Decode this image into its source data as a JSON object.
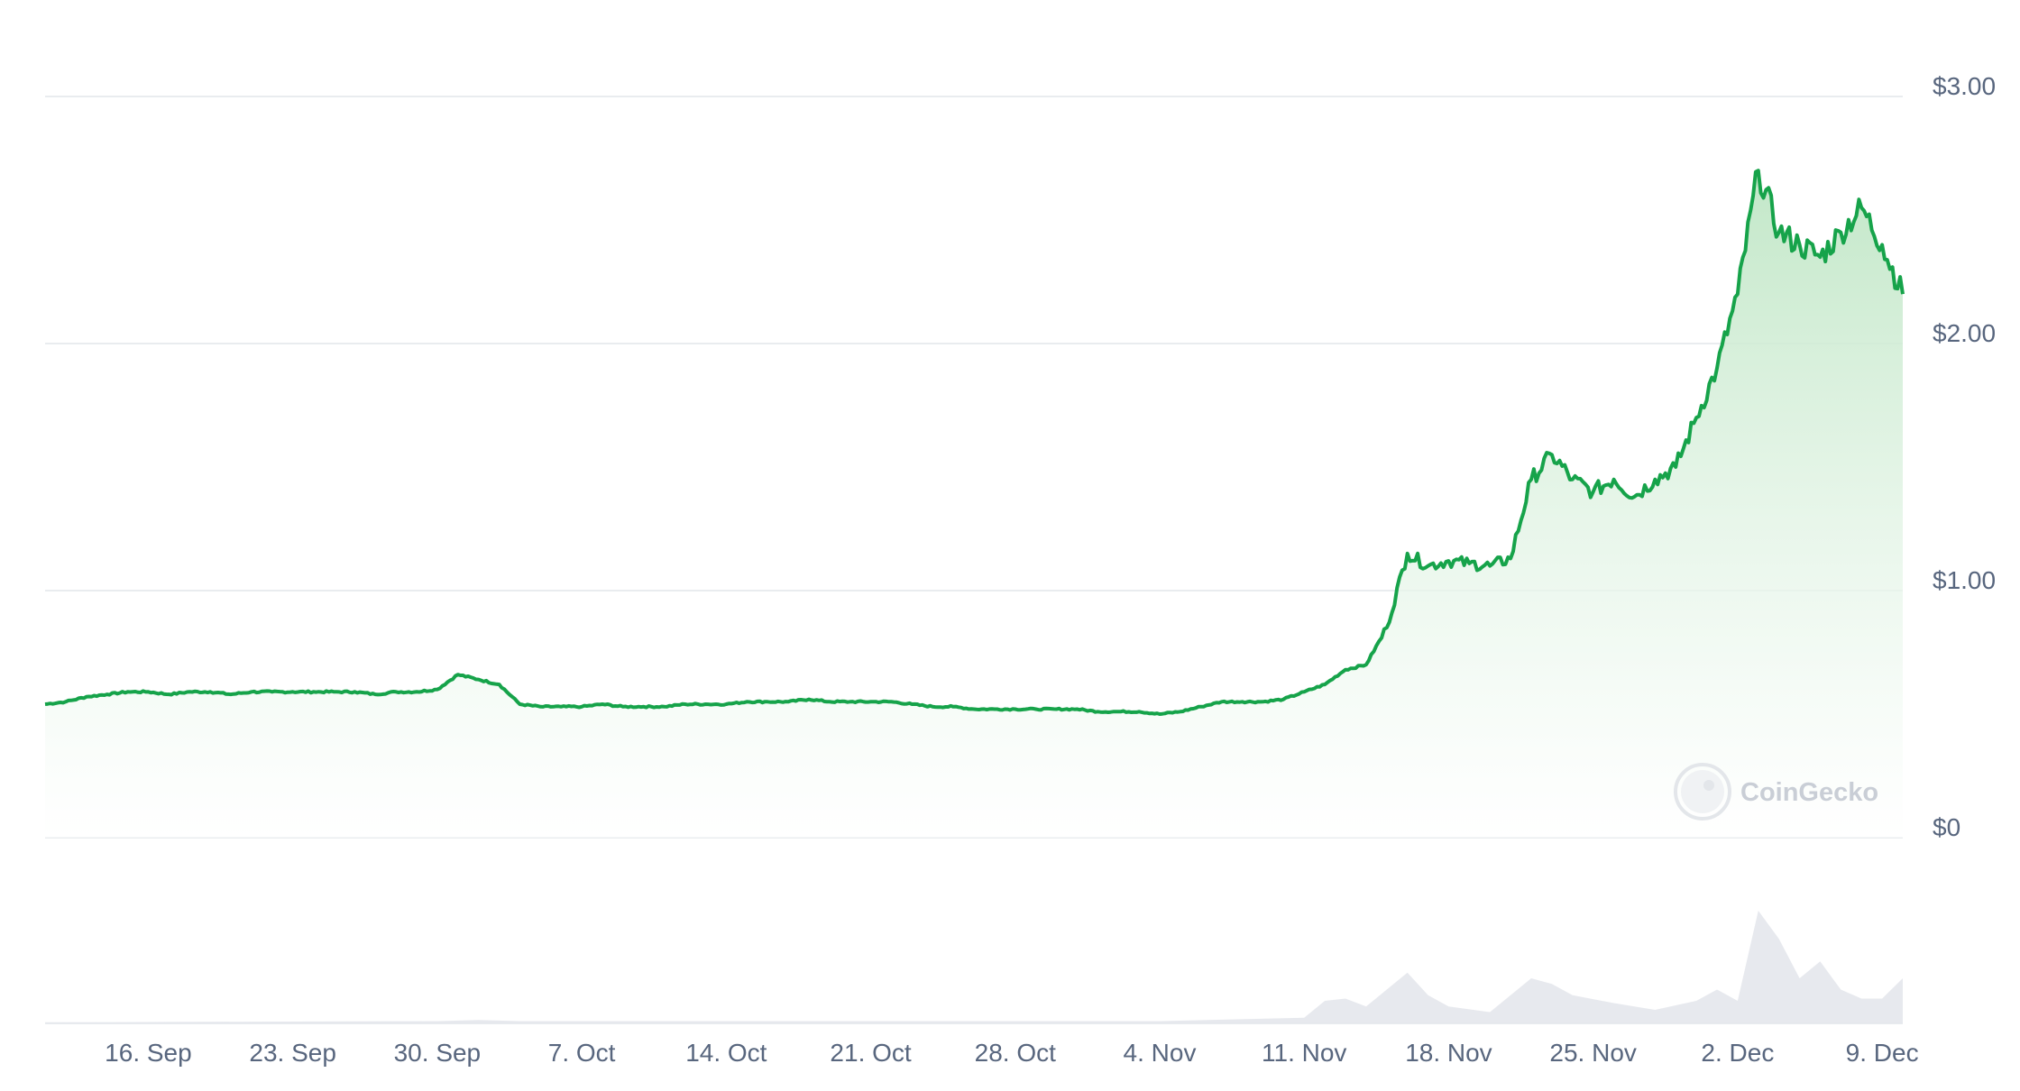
{
  "watermark": {
    "text": "CoinGecko"
  },
  "colors": {
    "line": "#16a34a",
    "area_top": "#bfe6c5",
    "grid": "#e9ecef",
    "label": "#58667e",
    "volume": "#e4e7ec",
    "watermark": "#d5d9df"
  },
  "chart_data": {
    "type": "area",
    "ylabel": "",
    "xlabel": "",
    "ylim": [
      0,
      3.0
    ],
    "y_ticks": [
      {
        "value": 0,
        "label": "$0"
      },
      {
        "value": 1.0,
        "label": "$1.00"
      },
      {
        "value": 2.0,
        "label": "$2.00"
      },
      {
        "value": 3.0,
        "label": "$3.00"
      }
    ],
    "x_ticks": [
      "16. Sep",
      "23. Sep",
      "30. Sep",
      "7. Oct",
      "14. Oct",
      "21. Oct",
      "28. Oct",
      "4. Nov",
      "11. Nov",
      "18. Nov",
      "25. Nov",
      "2. Dec",
      "9. Dec"
    ],
    "x_range": [
      "2024-09-11",
      "2024-12-10"
    ],
    "grid": true,
    "series": [
      {
        "points": [
          [
            "2024-09-11",
            0.54
          ],
          [
            "2024-09-12",
            0.55
          ],
          [
            "2024-09-13",
            0.57
          ],
          [
            "2024-09-14",
            0.58
          ],
          [
            "2024-09-15",
            0.59
          ],
          [
            "2024-09-16",
            0.59
          ],
          [
            "2024-09-17",
            0.58
          ],
          [
            "2024-09-18",
            0.59
          ],
          [
            "2024-09-19",
            0.59
          ],
          [
            "2024-09-20",
            0.58
          ],
          [
            "2024-09-21",
            0.59
          ],
          [
            "2024-09-22",
            0.59
          ],
          [
            "2024-09-23",
            0.59
          ],
          [
            "2024-09-24",
            0.59
          ],
          [
            "2024-09-25",
            0.59
          ],
          [
            "2024-09-26",
            0.59
          ],
          [
            "2024-09-27",
            0.58
          ],
          [
            "2024-09-28",
            0.59
          ],
          [
            "2024-09-29",
            0.59
          ],
          [
            "2024-09-30",
            0.6
          ],
          [
            "2024-10-01",
            0.66
          ],
          [
            "2024-10-02",
            0.64
          ],
          [
            "2024-10-03",
            0.62
          ],
          [
            "2024-10-04",
            0.54
          ],
          [
            "2024-10-05",
            0.53
          ],
          [
            "2024-10-06",
            0.53
          ],
          [
            "2024-10-07",
            0.53
          ],
          [
            "2024-10-08",
            0.54
          ],
          [
            "2024-10-09",
            0.53
          ],
          [
            "2024-10-10",
            0.53
          ],
          [
            "2024-10-11",
            0.53
          ],
          [
            "2024-10-12",
            0.54
          ],
          [
            "2024-10-13",
            0.54
          ],
          [
            "2024-10-14",
            0.54
          ],
          [
            "2024-10-15",
            0.55
          ],
          [
            "2024-10-16",
            0.55
          ],
          [
            "2024-10-17",
            0.55
          ],
          [
            "2024-10-18",
            0.56
          ],
          [
            "2024-10-19",
            0.55
          ],
          [
            "2024-10-20",
            0.55
          ],
          [
            "2024-10-21",
            0.55
          ],
          [
            "2024-10-22",
            0.55
          ],
          [
            "2024-10-23",
            0.54
          ],
          [
            "2024-10-24",
            0.53
          ],
          [
            "2024-10-25",
            0.53
          ],
          [
            "2024-10-26",
            0.52
          ],
          [
            "2024-10-27",
            0.52
          ],
          [
            "2024-10-28",
            0.52
          ],
          [
            "2024-10-29",
            0.52
          ],
          [
            "2024-10-30",
            0.52
          ],
          [
            "2024-10-31",
            0.52
          ],
          [
            "2024-11-01",
            0.51
          ],
          [
            "2024-11-02",
            0.51
          ],
          [
            "2024-11-03",
            0.51
          ],
          [
            "2024-11-04",
            0.5
          ],
          [
            "2024-11-05",
            0.51
          ],
          [
            "2024-11-06",
            0.53
          ],
          [
            "2024-11-07",
            0.55
          ],
          [
            "2024-11-08",
            0.55
          ],
          [
            "2024-11-09",
            0.55
          ],
          [
            "2024-11-10",
            0.56
          ],
          [
            "2024-11-11",
            0.59
          ],
          [
            "2024-11-12",
            0.62
          ],
          [
            "2024-11-13",
            0.68
          ],
          [
            "2024-11-14",
            0.7
          ],
          [
            "2024-11-15",
            0.85
          ],
          [
            "2024-11-16",
            1.15
          ],
          [
            "2024-11-17",
            1.1
          ],
          [
            "2024-11-18",
            1.12
          ],
          [
            "2024-11-19",
            1.11
          ],
          [
            "2024-11-20",
            1.1
          ],
          [
            "2024-11-21",
            1.13
          ],
          [
            "2024-11-22",
            1.45
          ],
          [
            "2024-11-23",
            1.55
          ],
          [
            "2024-11-24",
            1.45
          ],
          [
            "2024-11-25",
            1.4
          ],
          [
            "2024-11-26",
            1.45
          ],
          [
            "2024-11-27",
            1.38
          ],
          [
            "2024-11-28",
            1.45
          ],
          [
            "2024-11-29",
            1.5
          ],
          [
            "2024-11-30",
            1.7
          ],
          [
            "2024-12-01",
            1.9
          ],
          [
            "2024-12-02",
            2.2
          ],
          [
            "2024-12-03",
            2.7
          ],
          [
            "2024-12-04",
            2.45
          ],
          [
            "2024-12-05",
            2.4
          ],
          [
            "2024-12-06",
            2.35
          ],
          [
            "2024-12-07",
            2.45
          ],
          [
            "2024-12-08",
            2.55
          ],
          [
            "2024-12-09",
            2.4
          ],
          [
            "2024-12-10",
            2.2
          ]
        ]
      }
    ],
    "volume": {
      "points": [
        [
          "2024-09-11",
          0.01
        ],
        [
          "2024-09-30",
          0.02
        ],
        [
          "2024-10-02",
          0.03
        ],
        [
          "2024-10-04",
          0.02
        ],
        [
          "2024-11-04",
          0.02
        ],
        [
          "2024-11-11",
          0.05
        ],
        [
          "2024-11-12",
          0.2
        ],
        [
          "2024-11-13",
          0.22
        ],
        [
          "2024-11-14",
          0.15
        ],
        [
          "2024-11-15",
          0.3
        ],
        [
          "2024-11-16",
          0.45
        ],
        [
          "2024-11-17",
          0.25
        ],
        [
          "2024-11-18",
          0.15
        ],
        [
          "2024-11-20",
          0.1
        ],
        [
          "2024-11-22",
          0.4
        ],
        [
          "2024-11-23",
          0.35
        ],
        [
          "2024-11-24",
          0.25
        ],
        [
          "2024-11-26",
          0.18
        ],
        [
          "2024-11-28",
          0.12
        ],
        [
          "2024-11-30",
          0.2
        ],
        [
          "2024-12-01",
          0.3
        ],
        [
          "2024-12-02",
          0.2
        ],
        [
          "2024-12-03",
          1.0
        ],
        [
          "2024-12-04",
          0.75
        ],
        [
          "2024-12-05",
          0.4
        ],
        [
          "2024-12-06",
          0.55
        ],
        [
          "2024-12-07",
          0.3
        ],
        [
          "2024-12-08",
          0.22
        ],
        [
          "2024-12-09",
          0.22
        ],
        [
          "2024-12-10",
          0.4
        ]
      ]
    }
  }
}
